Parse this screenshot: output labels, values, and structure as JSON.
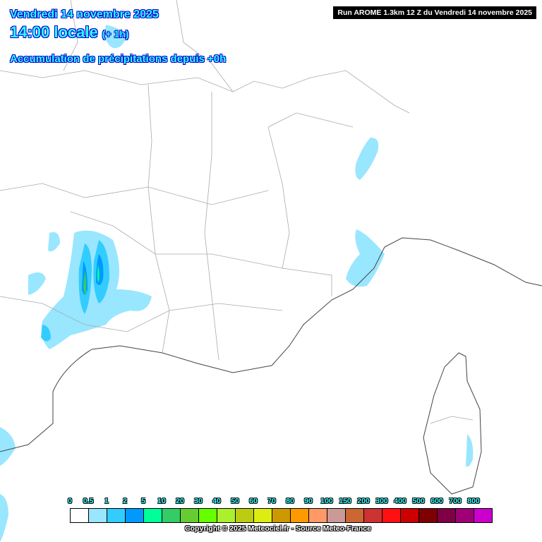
{
  "header": {
    "date": "Vendredi 14 novembre 2025",
    "time": "14:00 locale",
    "offset": "(+ 1h)",
    "title": "Accumulation de précipitations depuis +0h"
  },
  "run_label": "Run AROME 1.3km 12 Z du Vendredi 14 novembre 2025",
  "legend": {
    "labels": [
      "0",
      "0.5",
      "1",
      "2",
      "5",
      "10",
      "20",
      "30",
      "40",
      "50",
      "60",
      "70",
      "80",
      "90",
      "100",
      "150",
      "200",
      "300",
      "400",
      "500",
      "600",
      "700",
      "800"
    ],
    "colors": [
      "#ffffff",
      "#99e6ff",
      "#33ccff",
      "#0099ff",
      "#00ff99",
      "#33cc66",
      "#66cc33",
      "#66ff00",
      "#aaf02e",
      "#bbcc11",
      "#dded11",
      "#cc9900",
      "#ff9900",
      "#ff9966",
      "#cc9999",
      "#cc6633",
      "#cc3333",
      "#ff1111",
      "#cc0000",
      "#7f0000",
      "#7f0044",
      "#a00077",
      "#cc00cc"
    ]
  },
  "copyright": "Copyright © 2025 Meteociel.fr - Source Meteo-France"
}
